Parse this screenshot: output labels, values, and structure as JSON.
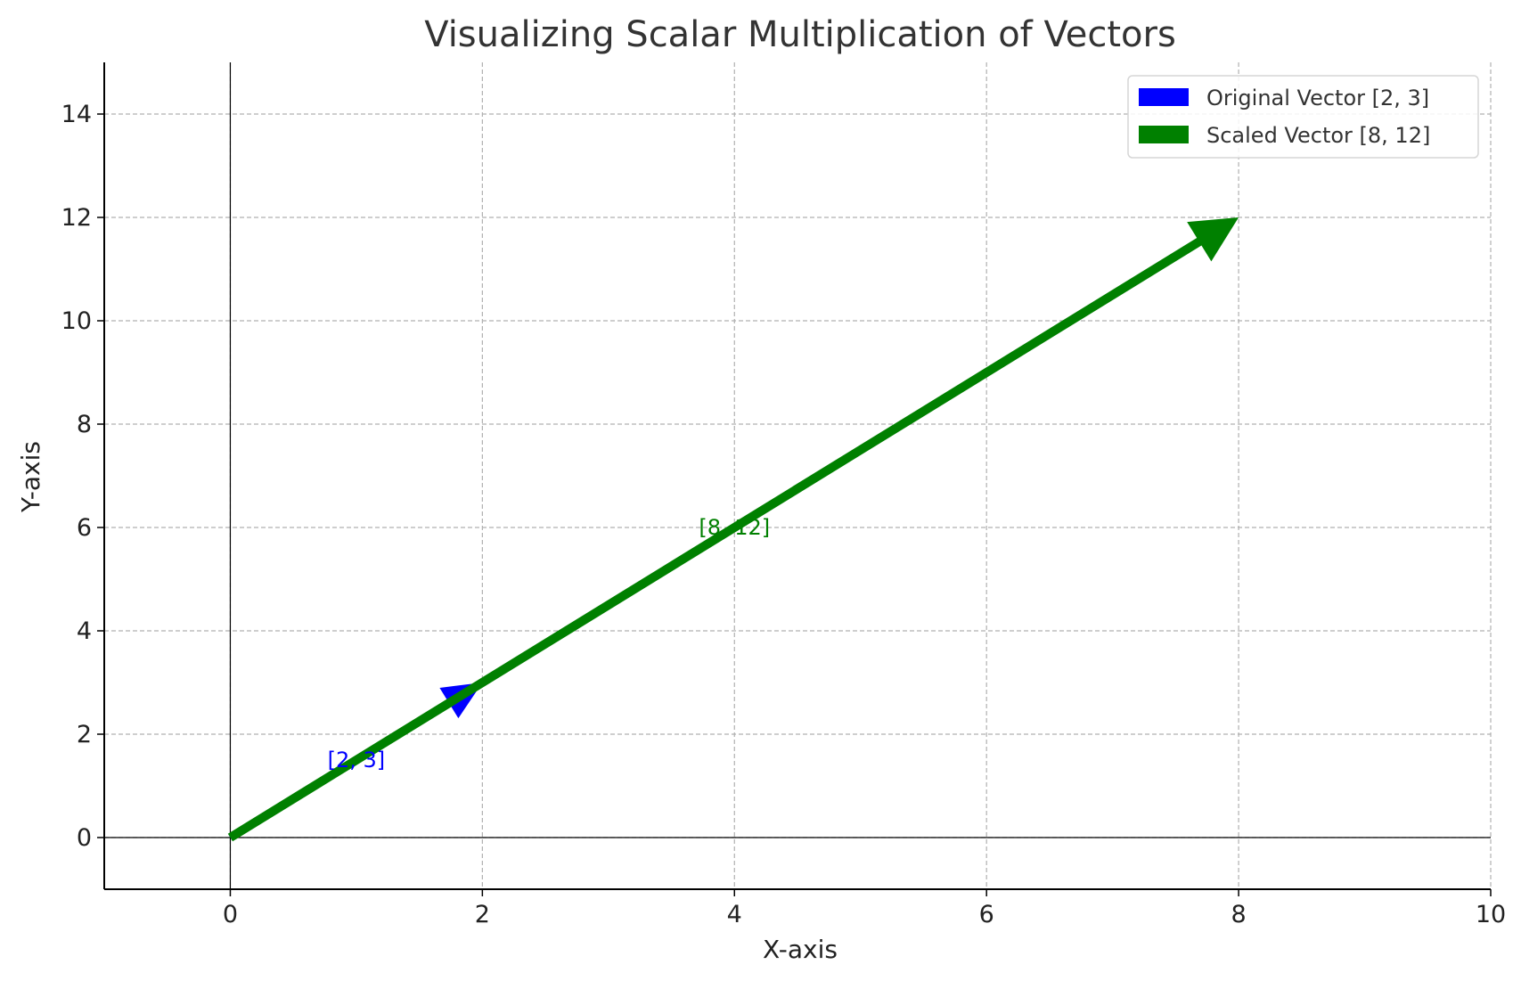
{
  "chart_data": {
    "type": "line",
    "title": "Visualizing Scalar Multiplication of Vectors",
    "xlabel": "X-axis",
    "ylabel": "Y-axis",
    "xlim": [
      -1,
      10
    ],
    "ylim": [
      -1,
      15
    ],
    "xticks": [
      0,
      2,
      4,
      6,
      8,
      10
    ],
    "yticks": [
      0,
      2,
      4,
      6,
      8,
      10,
      12,
      14
    ],
    "grid": true,
    "legend_position": "top-right",
    "series": [
      {
        "name": "Original Vector [2, 3]",
        "color": "#0000ff",
        "start": [
          0,
          0
        ],
        "end": [
          2,
          3
        ],
        "annotation": {
          "text": "[2, 3]",
          "at": [
            1,
            1.5
          ]
        }
      },
      {
        "name": "Scaled Vector [8, 12]",
        "color": "#008000",
        "start": [
          0,
          0
        ],
        "end": [
          8,
          12
        ],
        "annotation": {
          "text": "[8, 12]",
          "at": [
            4,
            6
          ]
        }
      }
    ]
  }
}
